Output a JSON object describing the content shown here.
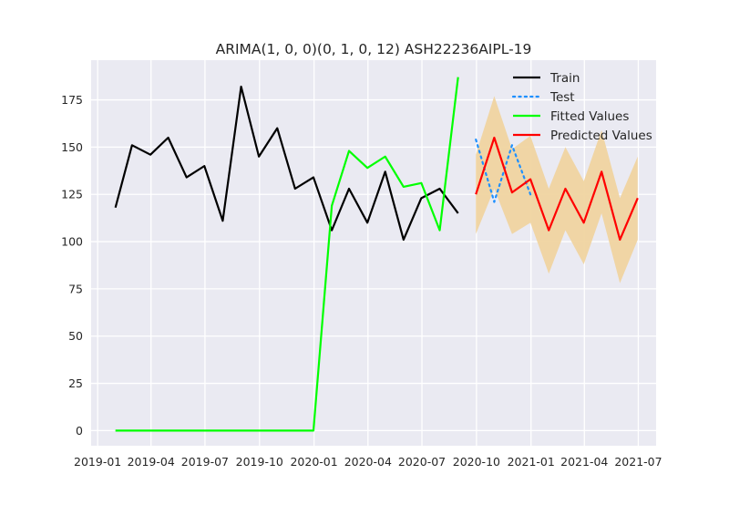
{
  "chart_data": {
    "type": "line",
    "title": "ARIMA(1, 0, 0)(0, 1, 0, 12) ASH22236AIPL-19",
    "xlabel": "",
    "ylabel": "",
    "ylim": [
      -8,
      196
    ],
    "xlim": [
      "2018-12-21",
      "2021-07-31"
    ],
    "grid": true,
    "legend_position": "top-right",
    "x_ticks": [
      {
        "date": "2019-01-01",
        "label": "2019-01"
      },
      {
        "date": "2019-04-01",
        "label": "2019-04"
      },
      {
        "date": "2019-07-01",
        "label": "2019-07"
      },
      {
        "date": "2019-10-01",
        "label": "2019-10"
      },
      {
        "date": "2020-01-01",
        "label": "2020-01"
      },
      {
        "date": "2020-04-01",
        "label": "2020-04"
      },
      {
        "date": "2020-07-01",
        "label": "2020-07"
      },
      {
        "date": "2020-10-01",
        "label": "2020-10"
      },
      {
        "date": "2021-01-01",
        "label": "2021-01"
      },
      {
        "date": "2021-04-01",
        "label": "2021-04"
      },
      {
        "date": "2021-07-01",
        "label": "2021-07"
      }
    ],
    "y_ticks": [
      0,
      25,
      50,
      75,
      100,
      125,
      150,
      175
    ],
    "series": [
      {
        "name": "Train",
        "color": "#000000",
        "style": "solid",
        "x": [
          "2019-01-31",
          "2019-02-28",
          "2019-03-31",
          "2019-04-30",
          "2019-05-31",
          "2019-06-30",
          "2019-07-31",
          "2019-08-31",
          "2019-09-30",
          "2019-10-31",
          "2019-11-30",
          "2019-12-31",
          "2020-01-31",
          "2020-02-29",
          "2020-03-31",
          "2020-04-30",
          "2020-05-31",
          "2020-06-30",
          "2020-07-31",
          "2020-08-31"
        ],
        "y": [
          118,
          151,
          146,
          155,
          134,
          140,
          111,
          182,
          145,
          160,
          128,
          134,
          106,
          128,
          110,
          137,
          101,
          123,
          128,
          115
        ]
      },
      {
        "name": "Test",
        "color": "#1e90ff",
        "style": "dotted",
        "x": [
          "2020-09-30",
          "2020-10-31",
          "2020-11-30",
          "2020-12-31"
        ],
        "y": [
          154,
          121,
          151,
          125
        ]
      },
      {
        "name": "Fitted Values",
        "color": "#00ff00",
        "style": "solid",
        "x": [
          "2019-01-31",
          "2019-02-28",
          "2019-03-31",
          "2019-04-30",
          "2019-05-31",
          "2019-06-30",
          "2019-07-31",
          "2019-08-31",
          "2019-09-30",
          "2019-10-31",
          "2019-11-30",
          "2019-12-31",
          "2020-01-31",
          "2020-02-29",
          "2020-03-31",
          "2020-04-30",
          "2020-05-31",
          "2020-06-30",
          "2020-07-31",
          "2020-08-31"
        ],
        "y": [
          0,
          0,
          0,
          0,
          0,
          0,
          0,
          0,
          0,
          0,
          0,
          0,
          119,
          148,
          139,
          145,
          129,
          131,
          106,
          187
        ]
      },
      {
        "name": "Predicted Values",
        "color": "#ff0000",
        "style": "solid",
        "x": [
          "2020-09-30",
          "2020-10-31",
          "2020-11-30",
          "2020-12-31",
          "2021-01-31",
          "2021-02-28",
          "2021-03-31",
          "2021-04-30",
          "2021-05-31",
          "2021-06-30"
        ],
        "y": [
          125,
          155,
          126,
          133,
          106,
          128,
          110,
          137,
          101,
          123
        ]
      }
    ],
    "confidence_band": {
      "color": "#f0d4a0",
      "x": [
        "2020-09-30",
        "2020-10-31",
        "2020-11-30",
        "2020-12-31",
        "2021-01-31",
        "2021-02-28",
        "2021-03-31",
        "2021-04-30",
        "2021-05-31",
        "2021-06-30"
      ],
      "lower": [
        104,
        128,
        104,
        110,
        83,
        106,
        88,
        115,
        78,
        101
      ],
      "upper": [
        146,
        177,
        149,
        156,
        128,
        150,
        132,
        159,
        123,
        145
      ]
    }
  }
}
